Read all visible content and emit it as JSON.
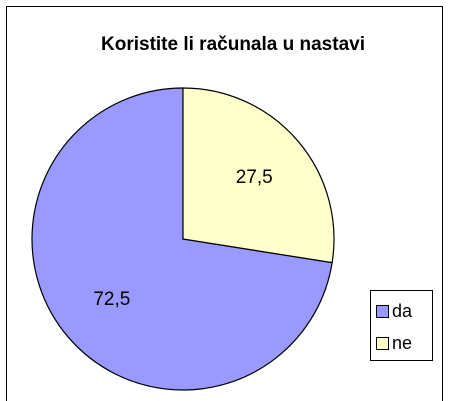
{
  "chart_data": {
    "type": "pie",
    "title": "Koristite li računala u nastavi",
    "categories": [
      "da",
      "ne"
    ],
    "values": [
      72.5,
      27.5
    ],
    "value_labels": [
      "72,5",
      "27,5"
    ],
    "colors": [
      "#9999ff",
      "#ffffcc"
    ],
    "legend": "right"
  }
}
